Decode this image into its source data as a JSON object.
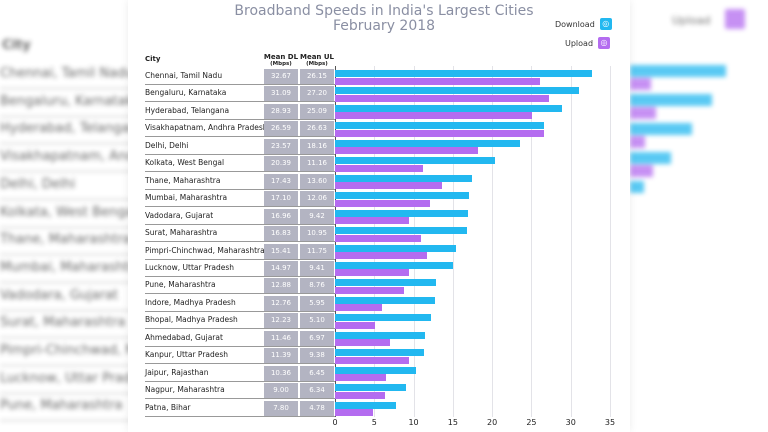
{
  "chart_data": {
    "type": "bar",
    "orientation": "horizontal",
    "title": "Broadband Speeds in India's Largest Cities",
    "subtitle": "February 2018",
    "columns": {
      "city": "City",
      "dl": "Mean DL",
      "dl_unit": "(Mbps)",
      "ul": "Mean UL",
      "ul_unit": "(Mbps)"
    },
    "categories": [
      "Chennai, Tamil Nadu",
      "Bengaluru, Karnataka",
      "Hyderabad, Telangana",
      "Visakhapatnam, Andhra Pradesh",
      "Delhi, Delhi",
      "Kolkata, West Bengal",
      "Thane, Maharashtra",
      "Mumbai, Maharashtra",
      "Vadodara, Gujarat",
      "Surat, Maharashtra",
      "Pimpri-Chinchwad, Maharashtra",
      "Lucknow, Uttar Pradesh",
      "Pune, Maharashtra",
      "Indore, Madhya Pradesh",
      "Bhopal, Madhya Pradesh",
      "Ahmedabad, Gujarat",
      "Kanpur, Uttar Pradesh",
      "Jaipur, Rajasthan",
      "Nagpur, Maharashtra",
      "Patna, Bihar"
    ],
    "series": [
      {
        "name": "Download",
        "color": "#22b8f0",
        "values": [
          32.67,
          31.09,
          28.93,
          26.59,
          23.57,
          20.39,
          17.43,
          17.1,
          16.96,
          16.83,
          15.41,
          14.97,
          12.88,
          12.76,
          12.23,
          11.46,
          11.39,
          10.36,
          9.0,
          7.8
        ]
      },
      {
        "name": "Upload",
        "color": "#b46cf0",
        "values": [
          26.15,
          27.2,
          25.09,
          26.63,
          18.16,
          11.16,
          13.6,
          12.06,
          9.42,
          10.95,
          11.75,
          9.41,
          8.76,
          5.95,
          5.1,
          6.97,
          9.38,
          6.45,
          6.34,
          4.78
        ]
      }
    ],
    "labels_dl": [
      "32.67",
      "31.09",
      "28.93",
      "26.59",
      "23.57",
      "20.39",
      "17.43",
      "17.10",
      "16.96",
      "16.83",
      "15.41",
      "14.97",
      "12.88",
      "12.76",
      "12.23",
      "11.46",
      "11.39",
      "10.36",
      "9.00",
      "7.80"
    ],
    "labels_ul": [
      "26.15",
      "27.20",
      "25.09",
      "26.63",
      "18.16",
      "11.16",
      "13.60",
      "12.06",
      "9.42",
      "10.95",
      "11.75",
      "9.41",
      "8.76",
      "5.95",
      "5.10",
      "6.97",
      "9.38",
      "6.45",
      "6.34",
      "4.78"
    ],
    "xlim": [
      0,
      35
    ],
    "xticks": [
      "0",
      "5",
      "10",
      "15",
      "20",
      "25",
      "30",
      "35"
    ],
    "grid": true,
    "legend": "top-right"
  },
  "background": {
    "city_header": "City",
    "legend_upload": "Upload"
  }
}
